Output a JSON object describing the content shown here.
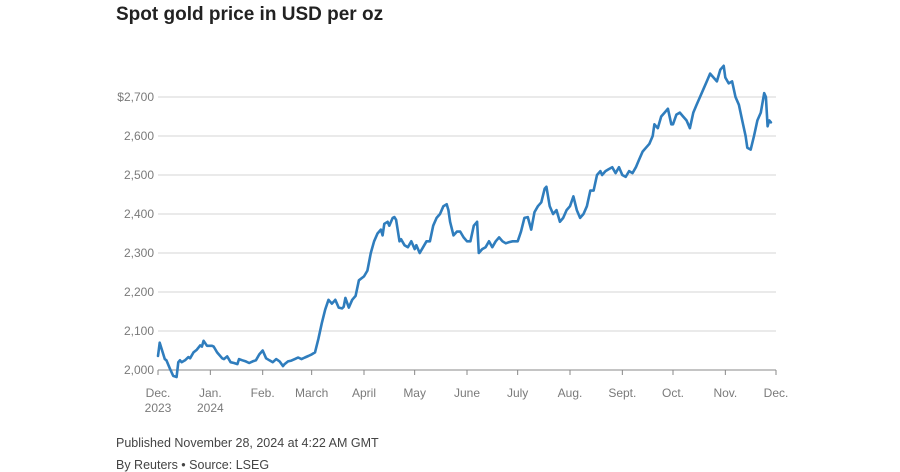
{
  "title": "Spot gold price in USD per oz",
  "footer": {
    "published": "Published November 28, 2024 at 4:22 AM GMT",
    "byline": "By Reuters • Source: LSEG"
  },
  "colors": {
    "line": "#2f7dbd",
    "grid": "#d4d4d4",
    "axis": "#888888",
    "tick_text": "#7a7a7a"
  },
  "chart_data": {
    "type": "line",
    "title": "Spot gold price in USD per oz",
    "xlabel": "",
    "ylabel": "",
    "ylim": [
      2000,
      2800
    ],
    "yticks": [
      2000,
      2100,
      2200,
      2300,
      2400,
      2500,
      2600,
      2700
    ],
    "ytick_labels": [
      "2,000",
      "2,100",
      "2,200",
      "2,300",
      "2,400",
      "2,500",
      "2,600",
      "$2,700"
    ],
    "x_range": [
      "2023-12-01",
      "2024-12-01"
    ],
    "xticks": [
      {
        "date": "2023-12-01",
        "line1": "Dec.",
        "line2": "2023"
      },
      {
        "date": "2024-01-01",
        "line1": "Jan.",
        "line2": "2024"
      },
      {
        "date": "2024-02-01",
        "line1": "Feb.",
        "line2": ""
      },
      {
        "date": "2024-03-01",
        "line1": "March",
        "line2": ""
      },
      {
        "date": "2024-04-01",
        "line1": "April",
        "line2": ""
      },
      {
        "date": "2024-05-01",
        "line1": "May",
        "line2": ""
      },
      {
        "date": "2024-06-01",
        "line1": "June",
        "line2": ""
      },
      {
        "date": "2024-07-01",
        "line1": "July",
        "line2": ""
      },
      {
        "date": "2024-08-01",
        "line1": "Aug.",
        "line2": ""
      },
      {
        "date": "2024-09-01",
        "line1": "Sept.",
        "line2": ""
      },
      {
        "date": "2024-10-01",
        "line1": "Oct.",
        "line2": ""
      },
      {
        "date": "2024-11-01",
        "line1": "Nov.",
        "line2": ""
      },
      {
        "date": "2024-12-01",
        "line1": "Dec.",
        "line2": ""
      }
    ],
    "grid": true,
    "series": [
      {
        "x": [
          "2023-12-01",
          "2023-12-02",
          "2023-12-04",
          "2023-12-05",
          "2023-12-06",
          "2023-12-08",
          "2023-12-10",
          "2023-12-12",
          "2023-12-13",
          "2023-12-14",
          "2023-12-15",
          "2023-12-17",
          "2023-12-19",
          "2023-12-20",
          "2023-12-22",
          "2023-12-24",
          "2023-12-26",
          "2023-12-27",
          "2023-12-28",
          "2023-12-30",
          "2024-01-02",
          "2024-01-03",
          "2024-01-05",
          "2024-01-08",
          "2024-01-09",
          "2024-01-11",
          "2024-01-13",
          "2024-01-15",
          "2024-01-17",
          "2024-01-18",
          "2024-01-20",
          "2024-01-22",
          "2024-01-24",
          "2024-01-26",
          "2024-01-28",
          "2024-01-30",
          "2024-02-01",
          "2024-02-03",
          "2024-02-05",
          "2024-02-07",
          "2024-02-09",
          "2024-02-11",
          "2024-02-13",
          "2024-02-14",
          "2024-02-16",
          "2024-02-18",
          "2024-02-20",
          "2024-02-22",
          "2024-02-24",
          "2024-02-26",
          "2024-02-28",
          "2024-03-01",
          "2024-03-03",
          "2024-03-05",
          "2024-03-07",
          "2024-03-09",
          "2024-03-11",
          "2024-03-13",
          "2024-03-15",
          "2024-03-17",
          "2024-03-19",
          "2024-03-20",
          "2024-03-21",
          "2024-03-23",
          "2024-03-25",
          "2024-03-27",
          "2024-03-29",
          "2024-04-01",
          "2024-04-03",
          "2024-04-05",
          "2024-04-07",
          "2024-04-09",
          "2024-04-11",
          "2024-04-12",
          "2024-04-13",
          "2024-04-15",
          "2024-04-16",
          "2024-04-18",
          "2024-04-19",
          "2024-04-20",
          "2024-04-22",
          "2024-04-23",
          "2024-04-25",
          "2024-04-27",
          "2024-04-29",
          "2024-05-01",
          "2024-05-02",
          "2024-05-04",
          "2024-05-06",
          "2024-05-08",
          "2024-05-10",
          "2024-05-12",
          "2024-05-14",
          "2024-05-16",
          "2024-05-18",
          "2024-05-20",
          "2024-05-21",
          "2024-05-22",
          "2024-05-24",
          "2024-05-26",
          "2024-05-28",
          "2024-05-30",
          "2024-06-01",
          "2024-06-03",
          "2024-06-05",
          "2024-06-07",
          "2024-06-08",
          "2024-06-10",
          "2024-06-12",
          "2024-06-14",
          "2024-06-16",
          "2024-06-18",
          "2024-06-20",
          "2024-06-22",
          "2024-06-24",
          "2024-06-26",
          "2024-06-28",
          "2024-07-01",
          "2024-07-03",
          "2024-07-05",
          "2024-07-07",
          "2024-07-09",
          "2024-07-11",
          "2024-07-13",
          "2024-07-15",
          "2024-07-17",
          "2024-07-18",
          "2024-07-20",
          "2024-07-22",
          "2024-07-24",
          "2024-07-26",
          "2024-07-28",
          "2024-07-30",
          "2024-08-01",
          "2024-08-03",
          "2024-08-05",
          "2024-08-07",
          "2024-08-09",
          "2024-08-11",
          "2024-08-13",
          "2024-08-15",
          "2024-08-17",
          "2024-08-19",
          "2024-08-20",
          "2024-08-22",
          "2024-08-24",
          "2024-08-26",
          "2024-08-28",
          "2024-08-30",
          "2024-09-01",
          "2024-09-03",
          "2024-09-05",
          "2024-09-07",
          "2024-09-09",
          "2024-09-11",
          "2024-09-13",
          "2024-09-15",
          "2024-09-17",
          "2024-09-19",
          "2024-09-20",
          "2024-09-22",
          "2024-09-24",
          "2024-09-26",
          "2024-09-28",
          "2024-09-30",
          "2024-10-01",
          "2024-10-03",
          "2024-10-05",
          "2024-10-07",
          "2024-10-09",
          "2024-10-11",
          "2024-10-13",
          "2024-10-15",
          "2024-10-17",
          "2024-10-19",
          "2024-10-21",
          "2024-10-23",
          "2024-10-25",
          "2024-10-27",
          "2024-10-29",
          "2024-10-31",
          "2024-11-01",
          "2024-11-03",
          "2024-11-05",
          "2024-11-07",
          "2024-11-09",
          "2024-11-11",
          "2024-11-13",
          "2024-11-14",
          "2024-11-16",
          "2024-11-18",
          "2024-11-20",
          "2024-11-22",
          "2024-11-24",
          "2024-11-25",
          "2024-11-26",
          "2024-11-27",
          "2024-11-28"
        ],
        "values": [
          2036,
          2070,
          2042,
          2028,
          2025,
          2004,
          1985,
          1982,
          2020,
          2025,
          2020,
          2025,
          2033,
          2030,
          2045,
          2052,
          2063,
          2060,
          2075,
          2062,
          2062,
          2060,
          2045,
          2030,
          2028,
          2035,
          2020,
          2018,
          2015,
          2028,
          2025,
          2022,
          2018,
          2022,
          2025,
          2040,
          2050,
          2030,
          2025,
          2020,
          2028,
          2022,
          2010,
          2015,
          2022,
          2024,
          2028,
          2032,
          2028,
          2032,
          2036,
          2040,
          2045,
          2080,
          2120,
          2155,
          2180,
          2170,
          2180,
          2160,
          2158,
          2162,
          2185,
          2160,
          2180,
          2190,
          2230,
          2240,
          2255,
          2300,
          2330,
          2350,
          2360,
          2345,
          2375,
          2380,
          2370,
          2390,
          2392,
          2385,
          2330,
          2335,
          2320,
          2315,
          2330,
          2310,
          2320,
          2300,
          2315,
          2330,
          2330,
          2370,
          2390,
          2400,
          2420,
          2425,
          2410,
          2380,
          2345,
          2355,
          2355,
          2340,
          2330,
          2330,
          2370,
          2380,
          2300,
          2310,
          2315,
          2330,
          2315,
          2330,
          2340,
          2330,
          2325,
          2328,
          2330,
          2330,
          2355,
          2390,
          2392,
          2360,
          2405,
          2420,
          2430,
          2465,
          2470,
          2420,
          2400,
          2410,
          2380,
          2390,
          2410,
          2420,
          2445,
          2410,
          2390,
          2400,
          2420,
          2460,
          2460,
          2500,
          2510,
          2500,
          2510,
          2515,
          2520,
          2505,
          2520,
          2500,
          2495,
          2510,
          2505,
          2520,
          2540,
          2560,
          2570,
          2580,
          2600,
          2630,
          2620,
          2650,
          2660,
          2670,
          2630,
          2630,
          2655,
          2660,
          2650,
          2640,
          2620,
          2660,
          2680,
          2700,
          2720,
          2740,
          2760,
          2750,
          2740,
          2770,
          2780,
          2750,
          2735,
          2740,
          2700,
          2680,
          2640,
          2600,
          2570,
          2565,
          2600,
          2640,
          2660,
          2710,
          2700,
          2625,
          2640,
          2635
        ]
      }
    ]
  }
}
